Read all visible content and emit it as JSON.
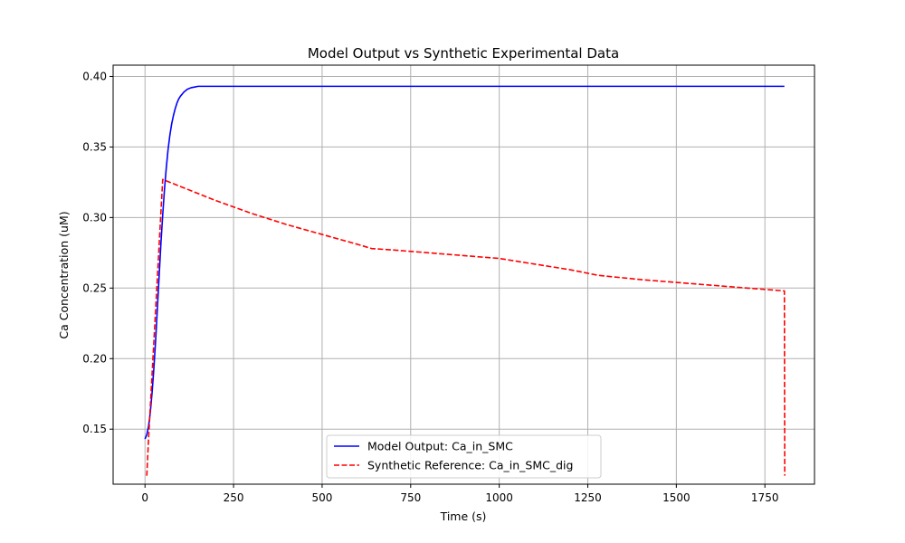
{
  "chart_data": {
    "type": "line",
    "title": "Model Output vs Synthetic Experimental Data",
    "xlabel": "Time (s)",
    "ylabel": "Ca Concentration (uM)",
    "xlim": [
      -90,
      1890
    ],
    "ylim": [
      0.111,
      0.408
    ],
    "xticks": [
      0,
      250,
      500,
      750,
      1000,
      1250,
      1500,
      1750
    ],
    "yticks": [
      0.15,
      0.2,
      0.25,
      0.3,
      0.35,
      0.4
    ],
    "grid": true,
    "legend_position": "bottom-center",
    "series": [
      {
        "name": "Model Output: Ca_in_SMC",
        "color": "#0000ff",
        "dash": "solid",
        "x": [
          0,
          5,
          10,
          15,
          20,
          25,
          30,
          35,
          40,
          45,
          50,
          55,
          60,
          65,
          70,
          75,
          80,
          85,
          90,
          95,
          100,
          110,
          120,
          130,
          140,
          150,
          160,
          180,
          200,
          250,
          300,
          500,
          1000,
          1500,
          1805
        ],
        "y": [
          0.143,
          0.146,
          0.152,
          0.162,
          0.176,
          0.193,
          0.213,
          0.236,
          0.259,
          0.282,
          0.302,
          0.32,
          0.335,
          0.348,
          0.358,
          0.366,
          0.372,
          0.377,
          0.381,
          0.384,
          0.386,
          0.389,
          0.391,
          0.392,
          0.3925,
          0.393,
          0.393,
          0.393,
          0.393,
          0.393,
          0.393,
          0.393,
          0.393,
          0.393,
          0.393
        ]
      },
      {
        "name": "Synthetic Reference: Ca_in_SMC_dig",
        "color": "#ff0000",
        "dash": "dashed",
        "x": [
          5,
          10,
          50,
          100,
          200,
          300,
          400,
          500,
          600,
          640,
          700,
          800,
          900,
          1000,
          1100,
          1200,
          1280,
          1400,
          1500,
          1600,
          1700,
          1805,
          1806
        ],
        "y": [
          0.117,
          0.143,
          0.327,
          0.322,
          0.312,
          0.303,
          0.295,
          0.288,
          0.281,
          0.278,
          0.277,
          0.275,
          0.273,
          0.271,
          0.267,
          0.263,
          0.259,
          0.256,
          0.254,
          0.252,
          0.25,
          0.248,
          0.117
        ]
      }
    ]
  }
}
